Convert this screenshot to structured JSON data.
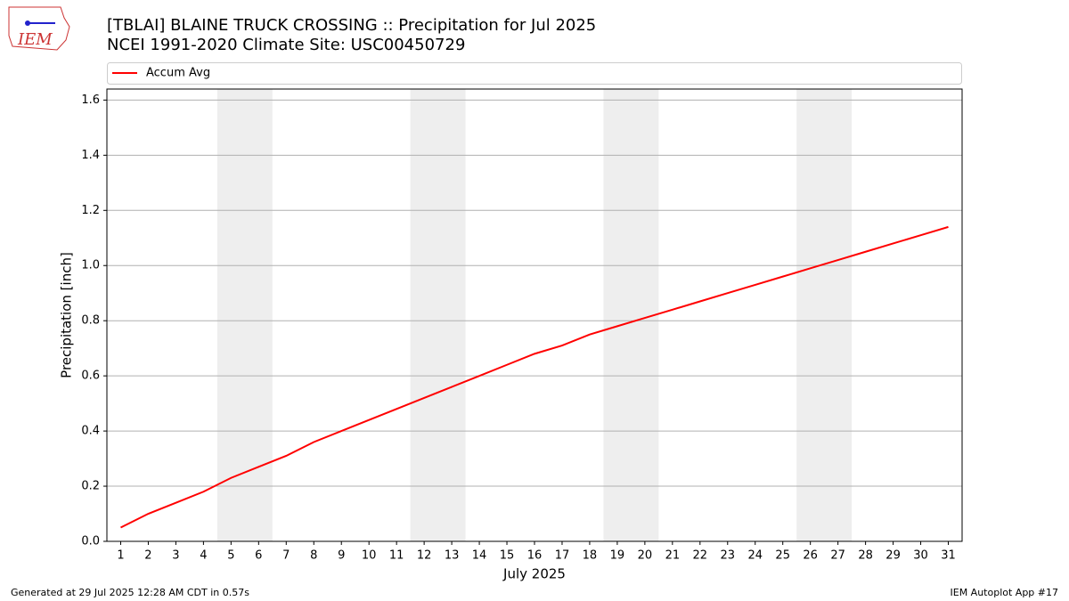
{
  "chart_data": {
    "type": "line",
    "title": "[TBLAI] BLAINE TRUCK CROSSING :: Precipitation for Jul 2025",
    "subtitle": "NCEI 1991-2020 Climate Site: USC00450729",
    "x_label": "July 2025",
    "y_label": "Precipitation [inch]",
    "x": [
      1,
      2,
      3,
      4,
      5,
      6,
      7,
      8,
      9,
      10,
      11,
      12,
      13,
      14,
      15,
      16,
      17,
      18,
      19,
      20,
      21,
      22,
      23,
      24,
      25,
      26,
      27,
      28,
      29,
      30,
      31
    ],
    "series": [
      {
        "name": "Accum Avg",
        "color": "#ff0000",
        "values": [
          0.05,
          0.1,
          0.14,
          0.18,
          0.23,
          0.27,
          0.31,
          0.36,
          0.4,
          0.44,
          0.48,
          0.52,
          0.56,
          0.6,
          0.64,
          0.68,
          0.71,
          0.75,
          0.78,
          0.81,
          0.84,
          0.87,
          0.9,
          0.93,
          0.96,
          0.99,
          1.02,
          1.05,
          1.08,
          1.11,
          1.14
        ]
      }
    ],
    "xlim": [
      0.5,
      31.5
    ],
    "xticks": [
      1,
      2,
      3,
      4,
      5,
      6,
      7,
      8,
      9,
      10,
      11,
      12,
      13,
      14,
      15,
      16,
      17,
      18,
      19,
      20,
      21,
      22,
      23,
      24,
      25,
      26,
      27,
      28,
      29,
      30,
      31
    ],
    "ylim": [
      0,
      1.64
    ],
    "yticks": [
      {
        "value": 0,
        "label": "0.0"
      },
      {
        "value": 0.2,
        "label": "0.2"
      },
      {
        "value": 0.4,
        "label": "0.4"
      },
      {
        "value": 0.6,
        "label": "0.6"
      },
      {
        "value": 0.8,
        "label": "0.8"
      },
      {
        "value": 1,
        "label": "1.0"
      },
      {
        "value": 1.2,
        "label": "1.2"
      },
      {
        "value": 1.4,
        "label": "1.4"
      },
      {
        "value": 1.6,
        "label": "1.6"
      }
    ],
    "grid": true,
    "shaded_spans": [
      [
        4.5,
        6.5
      ],
      [
        11.5,
        13.5
      ],
      [
        18.5,
        20.5
      ],
      [
        25.5,
        27.5
      ]
    ],
    "shade_color": "#eeeeee",
    "legend_position": "top",
    "logo_text": "IEM",
    "footer_left": "Generated at 29 Jul 2025 12:28 AM CDT in 0.57s",
    "footer_right": "IEM Autoplot App #17"
  }
}
